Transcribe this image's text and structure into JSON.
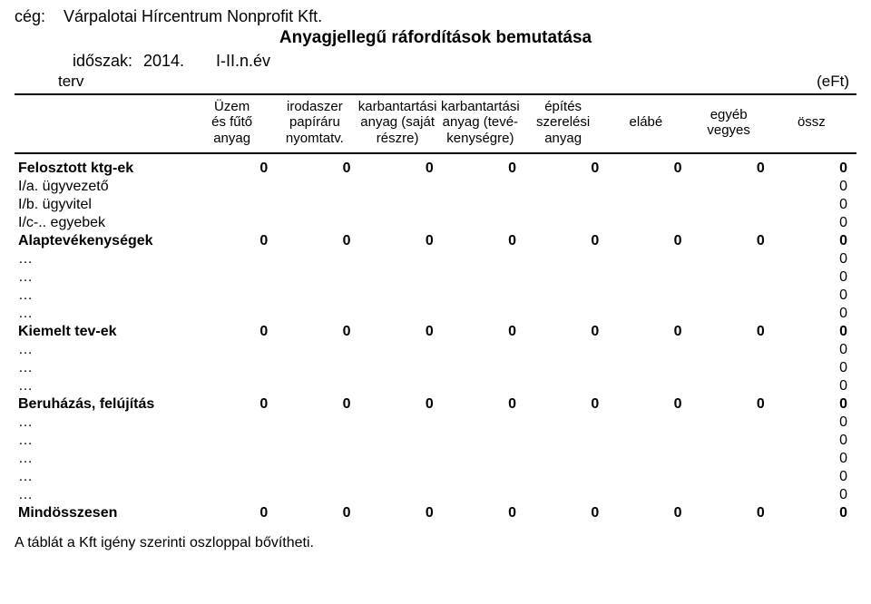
{
  "header": {
    "company_label": "cég:",
    "company_value": "Várpalotai Hírcentrum Nonprofit Kft.",
    "title": "Anyagjellegű ráfordítások bemutatása",
    "period_label": "időszak:",
    "period_year": "2014.",
    "period_span": "I-II.n.év",
    "plan_label": "terv",
    "unit": "(eFt)"
  },
  "columns": [
    "Üzem\nés fűtő\nanyag",
    "irodaszer\npapíráru\nnyomtatv.",
    "karbantartási\nanyag (saját\nrészre)",
    "karbantartási\nanyag (tevé-\nkenységre)",
    "építés\nszerelési\nanyag",
    "elábé",
    "egyéb\nvegyes",
    "össz"
  ],
  "rows": [
    {
      "label": "Felosztott ktg-ek",
      "bold": true,
      "values": [
        "0",
        "0",
        "0",
        "0",
        "0",
        "0",
        "0",
        "0"
      ]
    },
    {
      "label": "I/a.   ügyvezető",
      "bold": false,
      "values": [
        "",
        "",
        "",
        "",
        "",
        "",
        "",
        "0"
      ]
    },
    {
      "label": "I/b.   ügyvitel",
      "bold": false,
      "values": [
        "",
        "",
        "",
        "",
        "",
        "",
        "",
        "0"
      ]
    },
    {
      "label": "I/c-.. egyebek",
      "bold": false,
      "values": [
        "",
        "",
        "",
        "",
        "",
        "",
        "",
        "0"
      ]
    },
    {
      "label": "Alaptevékenységek",
      "bold": true,
      "values": [
        "0",
        "0",
        "0",
        "0",
        "0",
        "0",
        "0",
        "0"
      ]
    },
    {
      "label": "…",
      "bold": false,
      "values": [
        "",
        "",
        "",
        "",
        "",
        "",
        "",
        "0"
      ]
    },
    {
      "label": "…",
      "bold": false,
      "values": [
        "",
        "",
        "",
        "",
        "",
        "",
        "",
        "0"
      ]
    },
    {
      "label": "…",
      "bold": false,
      "values": [
        "",
        "",
        "",
        "",
        "",
        "",
        "",
        "0"
      ]
    },
    {
      "label": "…",
      "bold": false,
      "values": [
        "",
        "",
        "",
        "",
        "",
        "",
        "",
        "0"
      ]
    },
    {
      "label": "Kiemelt tev-ek",
      "bold": true,
      "values": [
        "0",
        "0",
        "0",
        "0",
        "0",
        "0",
        "0",
        "0"
      ]
    },
    {
      "label": "…",
      "bold": false,
      "values": [
        "",
        "",
        "",
        "",
        "",
        "",
        "",
        "0"
      ]
    },
    {
      "label": "…",
      "bold": false,
      "values": [
        "",
        "",
        "",
        "",
        "",
        "",
        "",
        "0"
      ]
    },
    {
      "label": "…",
      "bold": false,
      "values": [
        "",
        "",
        "",
        "",
        "",
        "",
        "",
        "0"
      ]
    },
    {
      "label": "Beruházás, felújítás",
      "bold": true,
      "values": [
        "0",
        "0",
        "0",
        "0",
        "0",
        "0",
        "0",
        "0"
      ]
    },
    {
      "label": "…",
      "bold": false,
      "values": [
        "",
        "",
        "",
        "",
        "",
        "",
        "",
        "0"
      ]
    },
    {
      "label": "…",
      "bold": false,
      "values": [
        "",
        "",
        "",
        "",
        "",
        "",
        "",
        "0"
      ]
    },
    {
      "label": "…",
      "bold": false,
      "values": [
        "",
        "",
        "",
        "",
        "",
        "",
        "",
        "0"
      ]
    },
    {
      "label": "…",
      "bold": false,
      "values": [
        "",
        "",
        "",
        "",
        "",
        "",
        "",
        "0"
      ]
    },
    {
      "label": "…",
      "bold": false,
      "values": [
        "",
        "",
        "",
        "",
        "",
        "",
        "",
        "0"
      ]
    },
    {
      "label": "Mindösszesen",
      "bold": true,
      "values": [
        "0",
        "0",
        "0",
        "0",
        "0",
        "0",
        "0",
        "0"
      ]
    }
  ],
  "footer": "A táblát a Kft igény szerinti oszloppal bővítheti."
}
